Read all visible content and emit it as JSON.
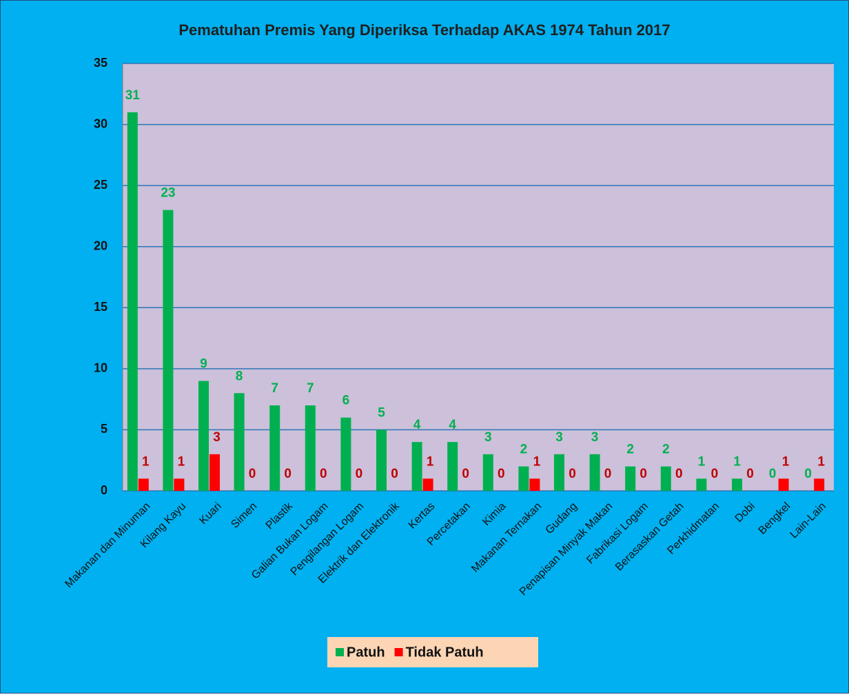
{
  "chart_data": {
    "type": "bar",
    "title": "Pematuhan Premis Yang Diperiksa Terhadap AKAS 1974 Tahun 2017",
    "categories": [
      "Makanan dan Minuman",
      "Kilang Kayu",
      "Kuari",
      "Simen",
      "Plastik",
      "Galian Bukan Logam",
      "Pengilangan Logam",
      "Elektrik dan Elektronik",
      "Kertas",
      "Percetakan",
      "Kimia",
      "Makanan Ternakan",
      "Gudang",
      "Penapisan Minyak Makan",
      "Fabrikasi Logam",
      "Berasaskan Getah",
      "Perkhidmatan",
      "Dobi",
      "Bengkel",
      "Lain-Lain"
    ],
    "series": [
      {
        "name": "Patuh",
        "color": "#00b050",
        "label_color": "#00b050",
        "values": [
          31,
          23,
          9,
          8,
          7,
          7,
          6,
          5,
          4,
          4,
          3,
          2,
          3,
          3,
          2,
          2,
          1,
          1,
          0,
          0
        ]
      },
      {
        "name": "Tidak Patuh",
        "color": "#ff0000",
        "label_color": "#c00000",
        "values": [
          1,
          1,
          3,
          0,
          0,
          0,
          0,
          0,
          1,
          0,
          0,
          1,
          0,
          0,
          0,
          0,
          0,
          0,
          1,
          1
        ]
      }
    ],
    "ylim": [
      0,
      35
    ],
    "yticks": [
      0,
      5,
      10,
      15,
      20,
      25,
      30,
      35
    ],
    "grid": true,
    "legend": "bottom"
  }
}
